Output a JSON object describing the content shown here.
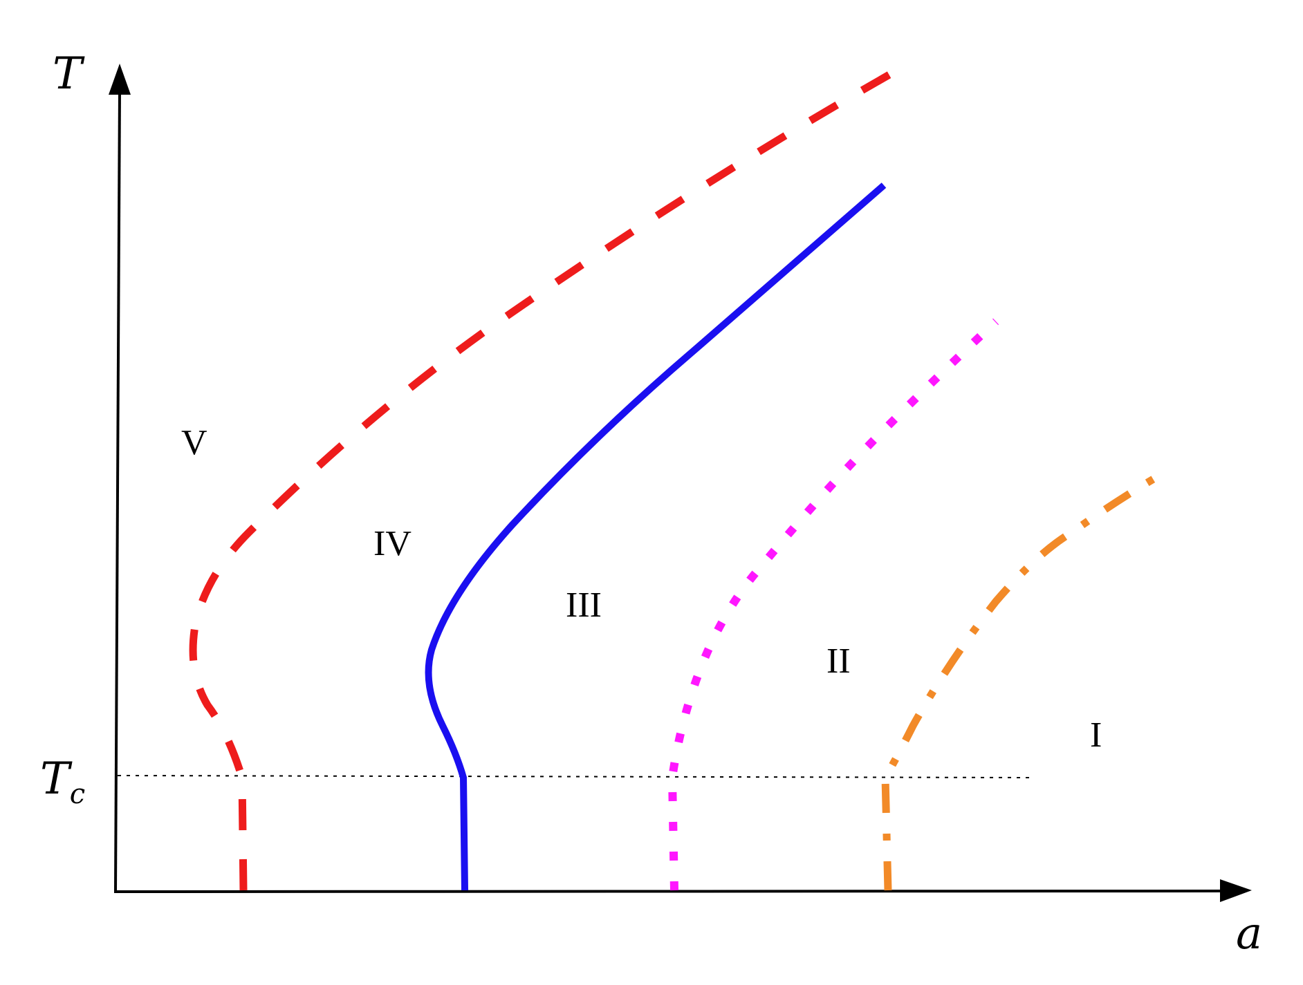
{
  "axes": {
    "y_label": "T",
    "x_label": "a",
    "tc_label_main": "T",
    "tc_label_sub": "c"
  },
  "regions": [
    {
      "label": "V"
    },
    {
      "label": "IV"
    },
    {
      "label": "III"
    },
    {
      "label": "II"
    },
    {
      "label": "I"
    }
  ],
  "curves": [
    {
      "id": "red-dashed",
      "color": "#ee1c1c",
      "style": "dashed"
    },
    {
      "id": "blue-solid",
      "color": "#1a0ff0",
      "style": "solid"
    },
    {
      "id": "magenta-dotted",
      "color": "#ff17ff",
      "style": "dotted"
    },
    {
      "id": "orange-dashdot",
      "color": "#f28a28",
      "style": "dash-dot"
    }
  ],
  "colors": {
    "axis": "#000000",
    "tc_line": "#000000"
  }
}
